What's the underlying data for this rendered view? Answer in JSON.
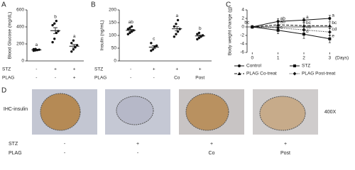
{
  "panels": [
    "A",
    "B",
    "C",
    "D"
  ],
  "chart_data": [
    {
      "type": "dotplot",
      "y_label": "Blood Glucose (mg/dL)",
      "ylim": [
        0,
        600
      ],
      "yticks": [
        0,
        200,
        400,
        600
      ],
      "row_labels": [
        "STZ",
        "PLAG"
      ],
      "color": "#111",
      "groups": [
        {
          "rows": [
            "-",
            "-"
          ],
          "letter": "a",
          "mean": 130,
          "sem": 4,
          "values": [
            120,
            125,
            128,
            132,
            138,
            140
          ]
        },
        {
          "rows": [
            "+",
            "-"
          ],
          "letter": "b",
          "mean": 356,
          "sem": 35,
          "values": [
            220,
            260,
            330,
            350,
            420,
            440,
            470
          ]
        },
        {
          "rows": [
            "+",
            "+"
          ],
          "letter": "a",
          "mean": 173,
          "sem": 19,
          "values": [
            110,
            135,
            160,
            185,
            210,
            240
          ]
        }
      ]
    },
    {
      "type": "dotplot",
      "y_label": "Insulin (ng/mL)",
      "ylim": [
        0,
        200
      ],
      "yticks": [
        0,
        50,
        100,
        150,
        200
      ],
      "row_labels": [
        "STZ",
        "PLAG"
      ],
      "color": "#111",
      "groups": [
        {
          "rows": [
            "-",
            "-"
          ],
          "letter": "ab",
          "mean": 120,
          "sem": 4,
          "values": [
            105,
            110,
            115,
            120,
            125,
            130,
            135
          ]
        },
        {
          "rows": [
            "+",
            "-"
          ],
          "letter": "c",
          "mean": 54,
          "sem": 6,
          "values": [
            40,
            45,
            55,
            60,
            70
          ]
        },
        {
          "rows": [
            "+",
            "Co"
          ],
          "letter": "a",
          "mean": 126,
          "sem": 8,
          "values": [
            95,
            105,
            115,
            125,
            135,
            145,
            160
          ]
        },
        {
          "rows": [
            "+",
            "Post"
          ],
          "letter": "b",
          "mean": 98,
          "sem": 4,
          "values": [
            85,
            90,
            95,
            100,
            105,
            110
          ]
        }
      ]
    },
    {
      "type": "line",
      "y_label": "Body weight change (g)",
      "x_label": "(Days)",
      "x": [
        0,
        1,
        2,
        3
      ],
      "xlim": [
        -0.2,
        3.1
      ],
      "xticks": [
        0,
        1,
        2,
        3
      ],
      "ylim": [
        -6,
        4
      ],
      "yticks": [
        -6,
        -4,
        -2,
        0,
        2,
        4
      ],
      "series": [
        {
          "name": "Control",
          "color": "#111",
          "dash": "solid",
          "marker": "circle",
          "values": [
            0,
            1.3,
            1.6,
            2
          ],
          "errors": [
            0.3,
            0.6,
            0.5,
            0.7
          ],
          "letters": [
            "bc",
            "ab",
            "a",
            "a"
          ]
        },
        {
          "name": "STZ",
          "color": "#111",
          "dash": "solid",
          "marker": "square",
          "values": [
            0,
            -0.8,
            -1.7,
            -2.8
          ],
          "errors": [
            0.3,
            0.8,
            1.0,
            0.9
          ],
          "letters": [
            null,
            "c",
            "d",
            "e"
          ]
        },
        {
          "name": "PLAG Co-treat",
          "color": "#111",
          "dash": "dashed",
          "marker": "triangle",
          "values": [
            0,
            0.5,
            0.3,
            0.3
          ],
          "errors": [
            0.3,
            0.5,
            0.6,
            0.7
          ],
          "letters": [
            null,
            "ab",
            "bc",
            "bc"
          ]
        },
        {
          "name": "PLAG Post-treat",
          "color": "#111",
          "dash": "dotted",
          "marker": "diamond",
          "values": [
            0,
            -0.2,
            -0.7,
            -1.2
          ],
          "errors": [
            0.3,
            0.6,
            0.8,
            0.9
          ],
          "letters": [
            null,
            null,
            "cd",
            "cd"
          ]
        }
      ]
    }
  ],
  "histology": {
    "row_label": "IHC-insulin",
    "magnification": "400X",
    "row_labels": [
      "STZ",
      "PLAG"
    ],
    "columns": [
      [
        "-",
        "-"
      ],
      [
        "+",
        "-"
      ],
      [
        "+",
        "Co"
      ],
      [
        "+",
        "Post"
      ]
    ]
  }
}
